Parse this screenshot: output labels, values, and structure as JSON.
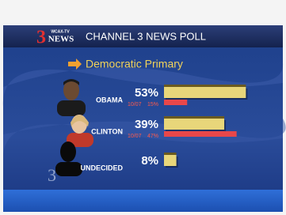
{
  "chart_data": {
    "type": "bar",
    "orientation": "horizontal",
    "station": "WCAX-TV",
    "logo_number": "3",
    "logo_text": "NEWS",
    "title": "CHANNEL 3 NEWS POLL",
    "subtitle": "Democratic Primary",
    "categories": [
      "OBAMA",
      "CLINTON",
      "UNDECIDED"
    ],
    "series": [
      {
        "color": "#e8d67a",
        "values": [
          53,
          39,
          8
        ],
        "value_labels": [
          "53%",
          "39%",
          "8%"
        ]
      },
      {
        "name": "10/07",
        "color": "#e8474a",
        "values": [
          15,
          47,
          null
        ],
        "value_labels": [
          "15%",
          "47%",
          null
        ]
      }
    ]
  }
}
